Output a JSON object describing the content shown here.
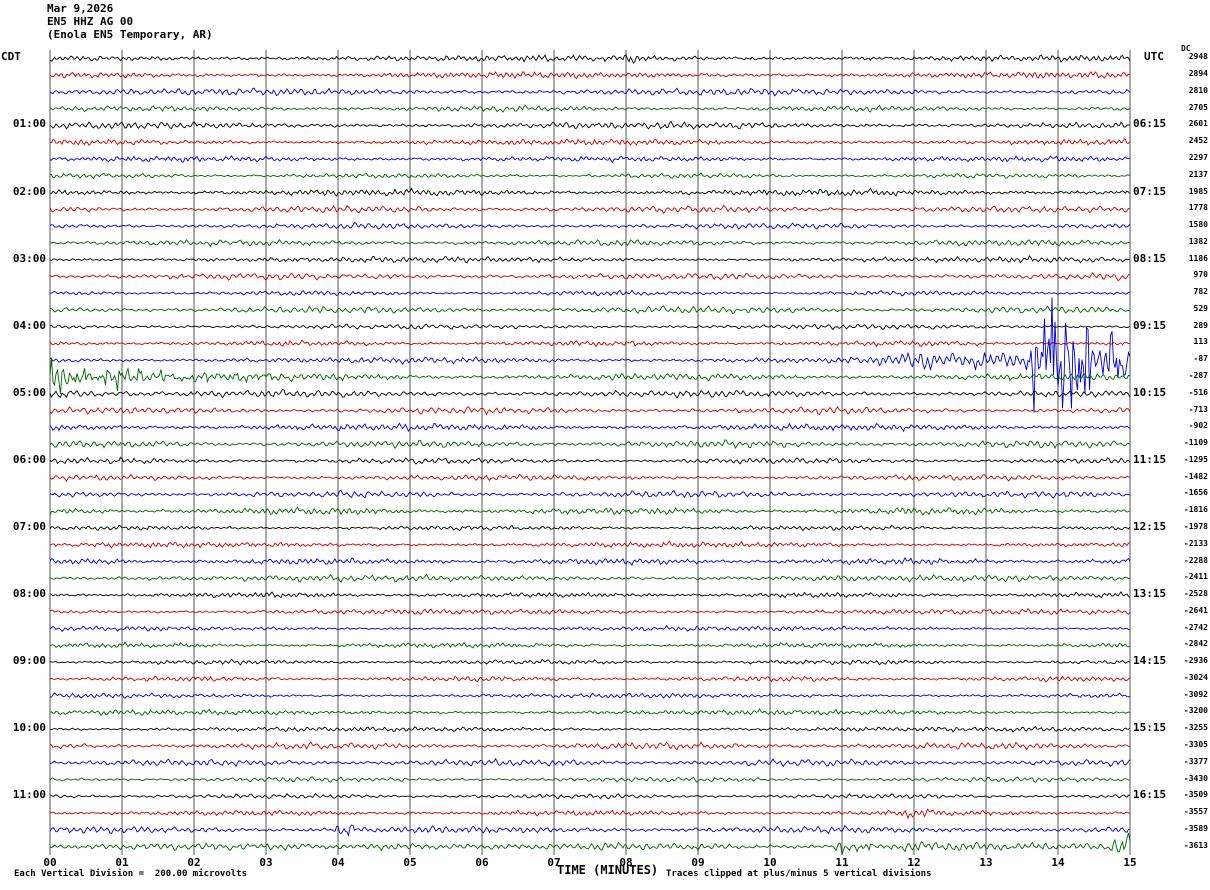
{
  "header": {
    "date": "Mar 9,2026",
    "station": "EN5 HHZ AG 00",
    "location": "(Enola EN5 Temporary, AR)"
  },
  "axes": {
    "left_tz": "CDT",
    "right_tz": "UTC",
    "dc_label": "DC",
    "x_title": "TIME (MINUTES)",
    "minute_labels": [
      "00",
      "01",
      "02",
      "03",
      "04",
      "05",
      "06",
      "07",
      "08",
      "09",
      "10",
      "11",
      "12",
      "13",
      "14",
      "15"
    ]
  },
  "footer": {
    "left": "Each Vertical Division =  200.00 microvolts",
    "right": "Traces clipped at plus/minus 5 vertical divisions"
  },
  "chart_data": {
    "type": "line",
    "kind": "seismogram-helicorder",
    "title": "EN5 HHZ AG 00 (Enola EN5 Temporary, AR) Mar 9,2026",
    "minutes_per_line": 15,
    "x_range": [
      0,
      15
    ],
    "rows": 48,
    "microvolts_per_division": 200,
    "clip_divisions": 5,
    "trace_colors_cycle": [
      "#000000",
      "#cc0000",
      "#0000cc",
      "#006600"
    ],
    "left_hour_labels": [
      "01:00",
      "02:00",
      "03:00",
      "04:00",
      "05:00",
      "06:00",
      "07:00",
      "08:00",
      "09:00",
      "10:00",
      "11:00"
    ],
    "right_hour_labels": [
      "06:15",
      "07:15",
      "08:15",
      "09:15",
      "10:15",
      "11:15",
      "12:15",
      "13:15",
      "14:15",
      "15:15",
      "16:15"
    ],
    "minute_labels": [
      "00",
      "01",
      "02",
      "03",
      "04",
      "05",
      "06",
      "07",
      "08",
      "09",
      "10",
      "11",
      "12",
      "13",
      "14",
      "15"
    ],
    "dc_values": [
      2948,
      2894,
      2810,
      2705,
      2601,
      2452,
      2297,
      2137,
      1985,
      1778,
      1580,
      1382,
      1186,
      970,
      782,
      529,
      289,
      113,
      -87,
      -287,
      -516,
      -713,
      -902,
      -1109,
      -1295,
      -1482,
      -1656,
      -1816,
      -1978,
      -2133,
      -2288,
      -2411,
      -2528,
      -2641,
      -2742,
      -2842,
      -2936,
      -3024,
      -3092,
      -3200,
      -3255,
      -3305,
      -3377,
      -3430,
      -3509,
      -3557,
      -3589,
      -3613
    ],
    "events": [
      {
        "row": 0,
        "t0": 7.95,
        "t1": 8.2,
        "amp": 5,
        "attack": 0.03,
        "decay": 6,
        "spiky": false
      },
      {
        "row": 18,
        "t0": 11.45,
        "t1": 13.55,
        "amp": 7,
        "attack": 0.5,
        "decay": 0,
        "spiky": false
      },
      {
        "row": 18,
        "t0": 13.55,
        "t1": 15,
        "amp": 88,
        "attack": 0.05,
        "decay": 0.8,
        "spiky": true
      },
      {
        "row": 19,
        "t0": 0,
        "t1": 4.5,
        "amp": 24,
        "attack": 0,
        "decay": 0.85,
        "spiky": true
      },
      {
        "row": 20,
        "t0": 0,
        "t1": 1.5,
        "amp": 4,
        "attack": 0,
        "decay": 1.5,
        "spiky": false
      },
      {
        "row": 45,
        "t0": 11.8,
        "t1": 12.4,
        "amp": 6,
        "attack": 0.08,
        "decay": 3,
        "spiky": false
      },
      {
        "row": 46,
        "t0": 3.95,
        "t1": 4.35,
        "amp": 15,
        "attack": 0.04,
        "decay": 5,
        "spiky": true
      },
      {
        "row": 47,
        "t0": 4.3,
        "t1": 6.3,
        "amp": 4,
        "attack": 0.3,
        "decay": 0.8,
        "spiky": false
      },
      {
        "row": 47,
        "t0": 10.85,
        "t1": 11.8,
        "amp": 10,
        "attack": 0.06,
        "decay": 2.0,
        "spiky": true
      },
      {
        "row": 47,
        "t0": 11.8,
        "t1": 13.3,
        "amp": 4,
        "attack": 0,
        "decay": 1.0,
        "spiky": false
      },
      {
        "row": 47,
        "t0": 14.7,
        "t1": 15,
        "amp": 11,
        "attack": 0.15,
        "decay": 0,
        "spiky": false
      }
    ]
  }
}
